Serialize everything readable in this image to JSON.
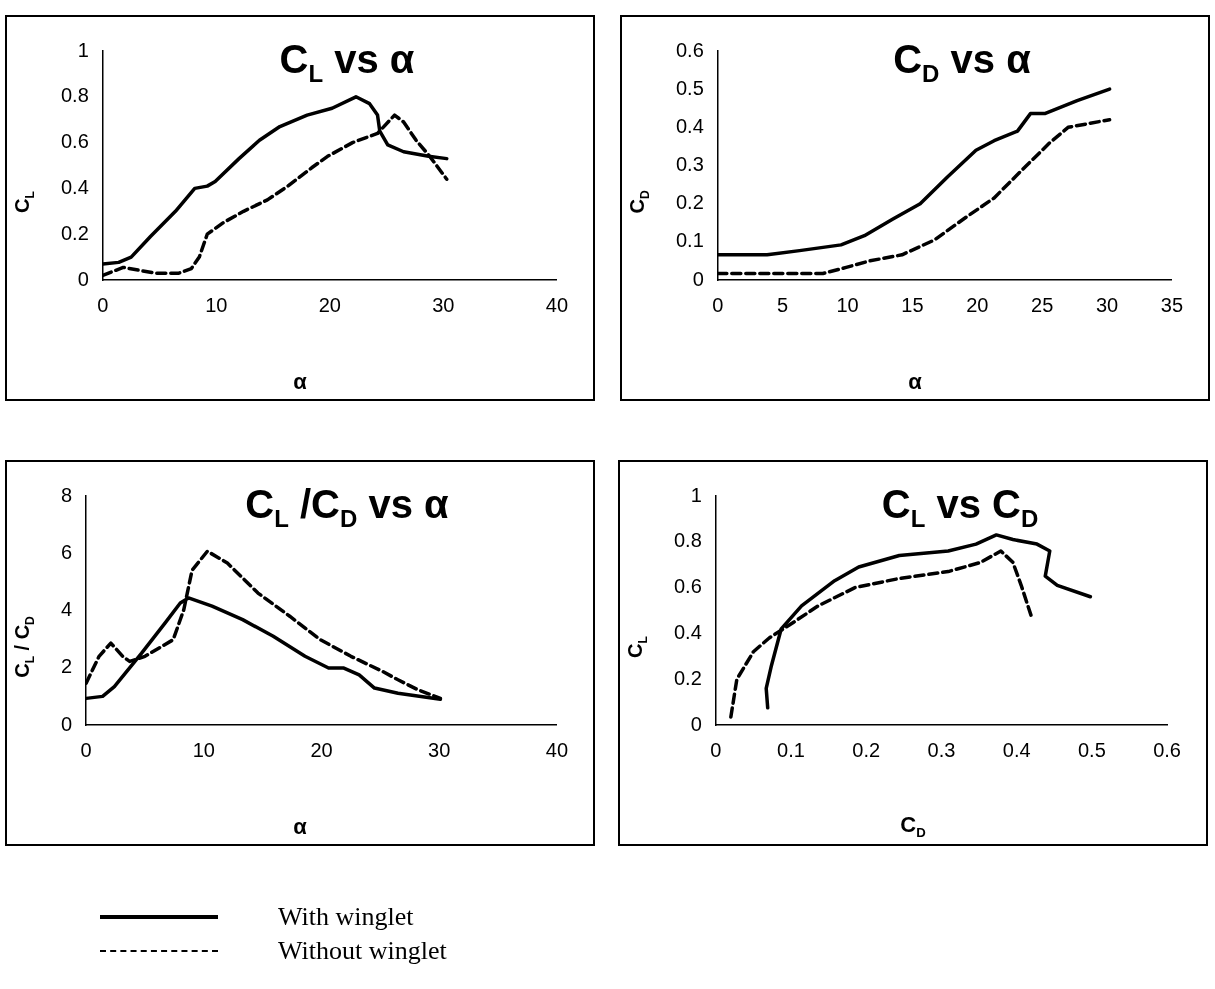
{
  "chart_data": [
    {
      "type": "line",
      "title": "C$_{L}$ vs α",
      "xlabel": "α",
      "ylabel": "C$_{L}$",
      "xlim": [
        0,
        40
      ],
      "xticks": [
        0,
        10,
        20,
        30,
        40
      ],
      "ylim": [
        0,
        1
      ],
      "yticks": [
        0,
        0.2,
        0.4,
        0.6,
        0.8,
        1
      ],
      "marker": "none",
      "legend": "bottom",
      "series": [
        {
          "name": "With winglet",
          "color": "#000000",
          "line_style": "solid",
          "x": [
            0,
            1.4,
            2.5,
            4.2,
            6.4,
            8.1,
            9.2,
            9.9,
            12,
            13.8,
            15.6,
            18,
            20.2,
            22.3,
            23.5,
            24.2,
            24.4,
            25.1,
            26.5,
            28.7,
            30.3
          ],
          "values": [
            0.07,
            0.077,
            0.1,
            0.19,
            0.3,
            0.4,
            0.41,
            0.43,
            0.53,
            0.61,
            0.67,
            0.72,
            0.75,
            0.8,
            0.77,
            0.72,
            0.65,
            0.59,
            0.56,
            0.54,
            0.53
          ]
        },
        {
          "name": "Without winglet",
          "color": "#000000",
          "line_style": "dashed",
          "x": [
            0,
            1.8,
            4.6,
            6.7,
            7.8,
            8.5,
            9.2,
            10.6,
            12.4,
            14.5,
            16.3,
            18.4,
            19.8,
            22,
            24.2,
            25.7,
            26.5,
            27.6,
            28.8,
            30.3
          ],
          "values": [
            0.02,
            0.055,
            0.03,
            0.03,
            0.05,
            0.1,
            0.2,
            0.25,
            0.3,
            0.35,
            0.41,
            0.49,
            0.54,
            0.6,
            0.64,
            0.72,
            0.69,
            0.61,
            0.54,
            0.44
          ]
        }
      ]
    },
    {
      "type": "line",
      "title": "C$_{D}$ vs α",
      "xlabel": "α",
      "ylabel": "C$_{D}$",
      "xlim": [
        0,
        35
      ],
      "xticks": [
        0,
        5,
        10,
        15,
        20,
        25,
        30,
        35
      ],
      "ylim": [
        0,
        0.6
      ],
      "yticks": [
        0,
        0.1,
        0.2,
        0.3,
        0.4,
        0.5,
        0.6
      ],
      "marker": "none",
      "legend": "bottom",
      "series": [
        {
          "name": "With winglet",
          "color": "#000000",
          "line_style": "solid",
          "x": [
            0,
            3.8,
            6.3,
            9.5,
            11.3,
            13.5,
            15.6,
            17.7,
            19.9,
            21.3,
            23.1,
            24.1,
            25.2,
            27.7,
            30.2
          ],
          "values": [
            0.066,
            0.066,
            0.077,
            0.092,
            0.116,
            0.16,
            0.2,
            0.27,
            0.34,
            0.365,
            0.39,
            0.436,
            0.436,
            0.47,
            0.5
          ]
        },
        {
          "name": "Without winglet",
          "color": "#000000",
          "line_style": "dashed",
          "x": [
            0,
            8.1,
            9.9,
            11.7,
            14.2,
            16.7,
            19.2,
            21.3,
            23.8,
            25.6,
            27,
            30.2
          ],
          "values": [
            0.017,
            0.017,
            0.033,
            0.05,
            0.066,
            0.105,
            0.166,
            0.215,
            0.3,
            0.36,
            0.4,
            0.42
          ]
        }
      ]
    },
    {
      "type": "line",
      "title": "C$_{L}$ /C$_{D}$ vs α",
      "xlabel": "α",
      "ylabel": "C$_{L}$ / C$_{D}$",
      "xlim": [
        0,
        40
      ],
      "xticks": [
        0,
        10,
        20,
        30,
        40
      ],
      "ylim": [
        0,
        8
      ],
      "yticks": [
        0,
        2,
        4,
        6,
        8
      ],
      "marker": "none",
      "legend": "bottom",
      "series": [
        {
          "name": "With winglet",
          "color": "#000000",
          "line_style": "solid",
          "x": [
            0,
            1.4,
            2.4,
            4.7,
            6.7,
            8,
            8.7,
            10.7,
            13.3,
            15.9,
            18.6,
            20.6,
            21.9,
            23.2,
            24.5,
            26.5,
            30.1
          ],
          "values": [
            0.93,
            1,
            1.34,
            2.5,
            3.56,
            4.26,
            4.44,
            4.15,
            3.68,
            3.1,
            2.4,
            1.99,
            1.99,
            1.75,
            1.29,
            1.11,
            0.9
          ]
        },
        {
          "name": "Without winglet",
          "color": "#000000",
          "line_style": "dashed",
          "x": [
            0,
            1.1,
            2.1,
            3.1,
            3.7,
            5,
            7.4,
            8.3,
            9,
            10.3,
            12,
            14.6,
            17.3,
            19.9,
            22.5,
            25.2,
            26.5,
            28.2,
            30.1
          ],
          "values": [
            1.46,
            2.4,
            2.86,
            2.4,
            2.22,
            2.4,
            2.98,
            4.03,
            5.4,
            6.07,
            5.66,
            4.61,
            3.8,
            2.98,
            2.4,
            1.87,
            1.58,
            1.23,
            0.93
          ]
        }
      ]
    },
    {
      "type": "line",
      "title": "C$_{L}$ vs C$_{D}$",
      "xlabel": "C$_{D}$",
      "ylabel": "C$_{L}$",
      "xlim": [
        0,
        0.6
      ],
      "xticks": [
        0,
        0.1,
        0.2,
        0.3,
        0.4,
        0.5,
        0.6
      ],
      "ylim": [
        0,
        1
      ],
      "yticks": [
        0,
        0.2,
        0.4,
        0.6,
        0.8,
        1
      ],
      "marker": "none",
      "legend": "bottom",
      "series": [
        {
          "name": "With winglet",
          "color": "#000000",
          "line_style": "solid",
          "x": [
            0.069,
            0.067,
            0.074,
            0.087,
            0.114,
            0.158,
            0.19,
            0.244,
            0.309,
            0.346,
            0.373,
            0.395,
            0.427,
            0.444,
            0.438,
            0.454,
            0.498
          ],
          "values": [
            0.075,
            0.16,
            0.26,
            0.42,
            0.52,
            0.63,
            0.69,
            0.74,
            0.76,
            0.79,
            0.83,
            0.81,
            0.79,
            0.76,
            0.65,
            0.61,
            0.56
          ]
        },
        {
          "name": "Without winglet",
          "color": "#000000",
          "line_style": "dashed",
          "x": [
            0.02,
            0.028,
            0.05,
            0.071,
            0.104,
            0.136,
            0.185,
            0.244,
            0.309,
            0.352,
            0.379,
            0.395,
            0.406,
            0.419
          ],
          "values": [
            0.035,
            0.2,
            0.32,
            0.38,
            0.45,
            0.52,
            0.6,
            0.64,
            0.67,
            0.71,
            0.76,
            0.71,
            0.61,
            0.48
          ]
        }
      ]
    }
  ]
}
